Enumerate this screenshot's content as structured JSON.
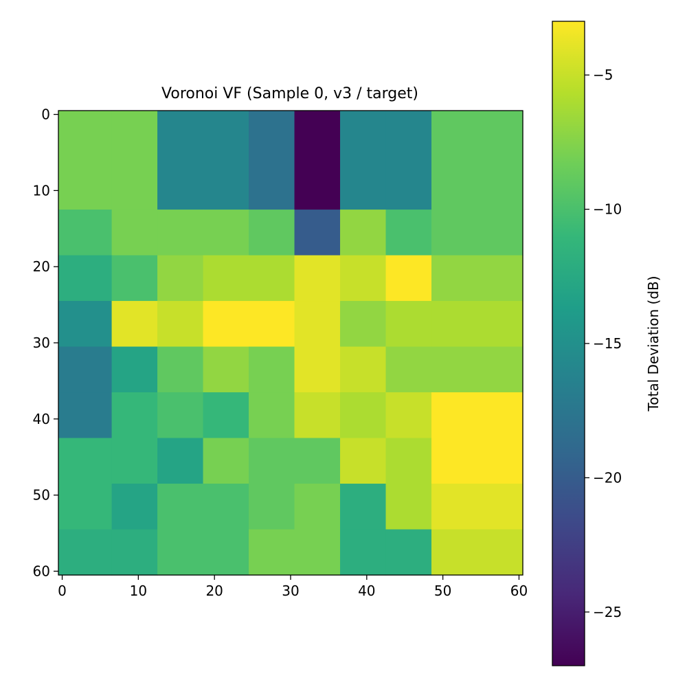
{
  "chart_data": {
    "type": "heatmap",
    "title": "Voronoi VF (Sample 0, v3 / target)",
    "xlabel": "",
    "ylabel": "",
    "colorbar_label": "Total Deviation (dB)",
    "colormap": "viridis",
    "vmin": -27,
    "vmax": -3,
    "x_range": [
      0,
      60
    ],
    "y_range": [
      0,
      60
    ],
    "x_ticks": [
      0,
      10,
      20,
      30,
      40,
      50,
      60
    ],
    "y_ticks": [
      0,
      10,
      20,
      30,
      40,
      50,
      60
    ],
    "colorbar_ticks": [
      -5,
      -10,
      -15,
      -20,
      -25
    ],
    "grid": false,
    "region_grid": {
      "col_edges": [
        0,
        7,
        13,
        19,
        25,
        31,
        37,
        43,
        49,
        61
      ],
      "row_edges": [
        0,
        13,
        19,
        25,
        31,
        37,
        43,
        49,
        55,
        61
      ]
    },
    "values": [
      [
        -8,
        -8,
        -16,
        -16,
        -18,
        -27,
        -16,
        -16,
        -9
      ],
      [
        -10,
        -8,
        -8,
        -8,
        -9,
        -20,
        -7,
        -10,
        -9
      ],
      [
        -12,
        -10,
        -7,
        -6,
        -6,
        -4,
        -5,
        -3,
        -7
      ],
      [
        -15,
        -4,
        -5,
        -3,
        -3,
        -4,
        -7,
        -6,
        -6
      ],
      [
        -17,
        -13,
        -9,
        -7,
        -8,
        -4,
        -5,
        -7,
        -7
      ],
      [
        -17,
        -11,
        -10,
        -11,
        -8,
        -5,
        -6,
        -5,
        -3
      ],
      [
        -11,
        -11,
        -13,
        -8,
        -9,
        -9,
        -5,
        -6,
        -3
      ],
      [
        -11,
        -13,
        -10,
        -10,
        -9,
        -8,
        -12,
        -6,
        -4
      ],
      [
        -12,
        -12,
        -10,
        -10,
        -8,
        -8,
        -12,
        -12,
        -5
      ]
    ]
  },
  "colors": {
    "viridis": [
      "#440154",
      "#482878",
      "#3e4989",
      "#31688e",
      "#26828e",
      "#1f9e89",
      "#35b779",
      "#6ece58",
      "#b5de2b",
      "#fde725"
    ]
  }
}
